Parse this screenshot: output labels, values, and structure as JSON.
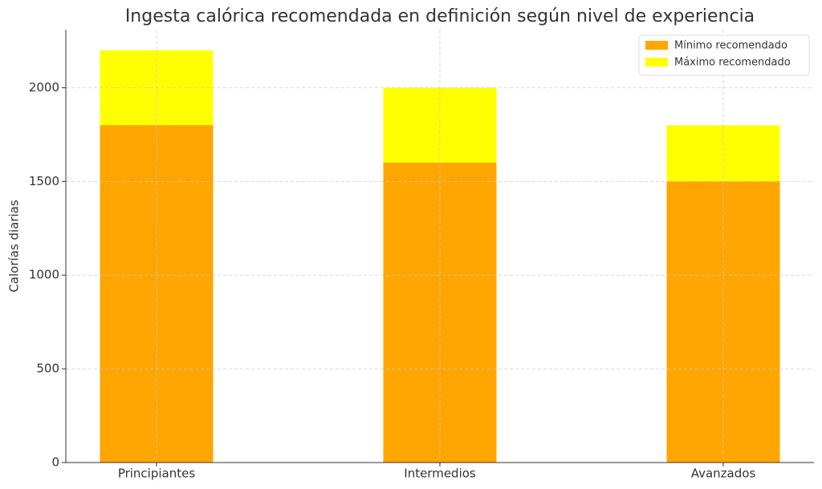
{
  "chart_data": {
    "type": "bar",
    "title": "Ingesta calórica recomendada en definición según nivel de experiencia",
    "y_label": "Calorías diarias",
    "categories": [
      "Principiantes",
      "Intermedios",
      "Avanzados"
    ],
    "series": [
      {
        "name": "Mínimo recomendado",
        "color": "#ffa500",
        "values": [
          1800,
          1600,
          1500
        ]
      },
      {
        "name": "Máximo recomendado",
        "color": "#ffff00",
        "values": [
          2200,
          2000,
          1800
        ]
      }
    ],
    "ylim": [
      0,
      2310
    ],
    "yticks": [
      0,
      500,
      1000,
      1500,
      2000
    ],
    "grid": true,
    "legend": "upper right"
  }
}
